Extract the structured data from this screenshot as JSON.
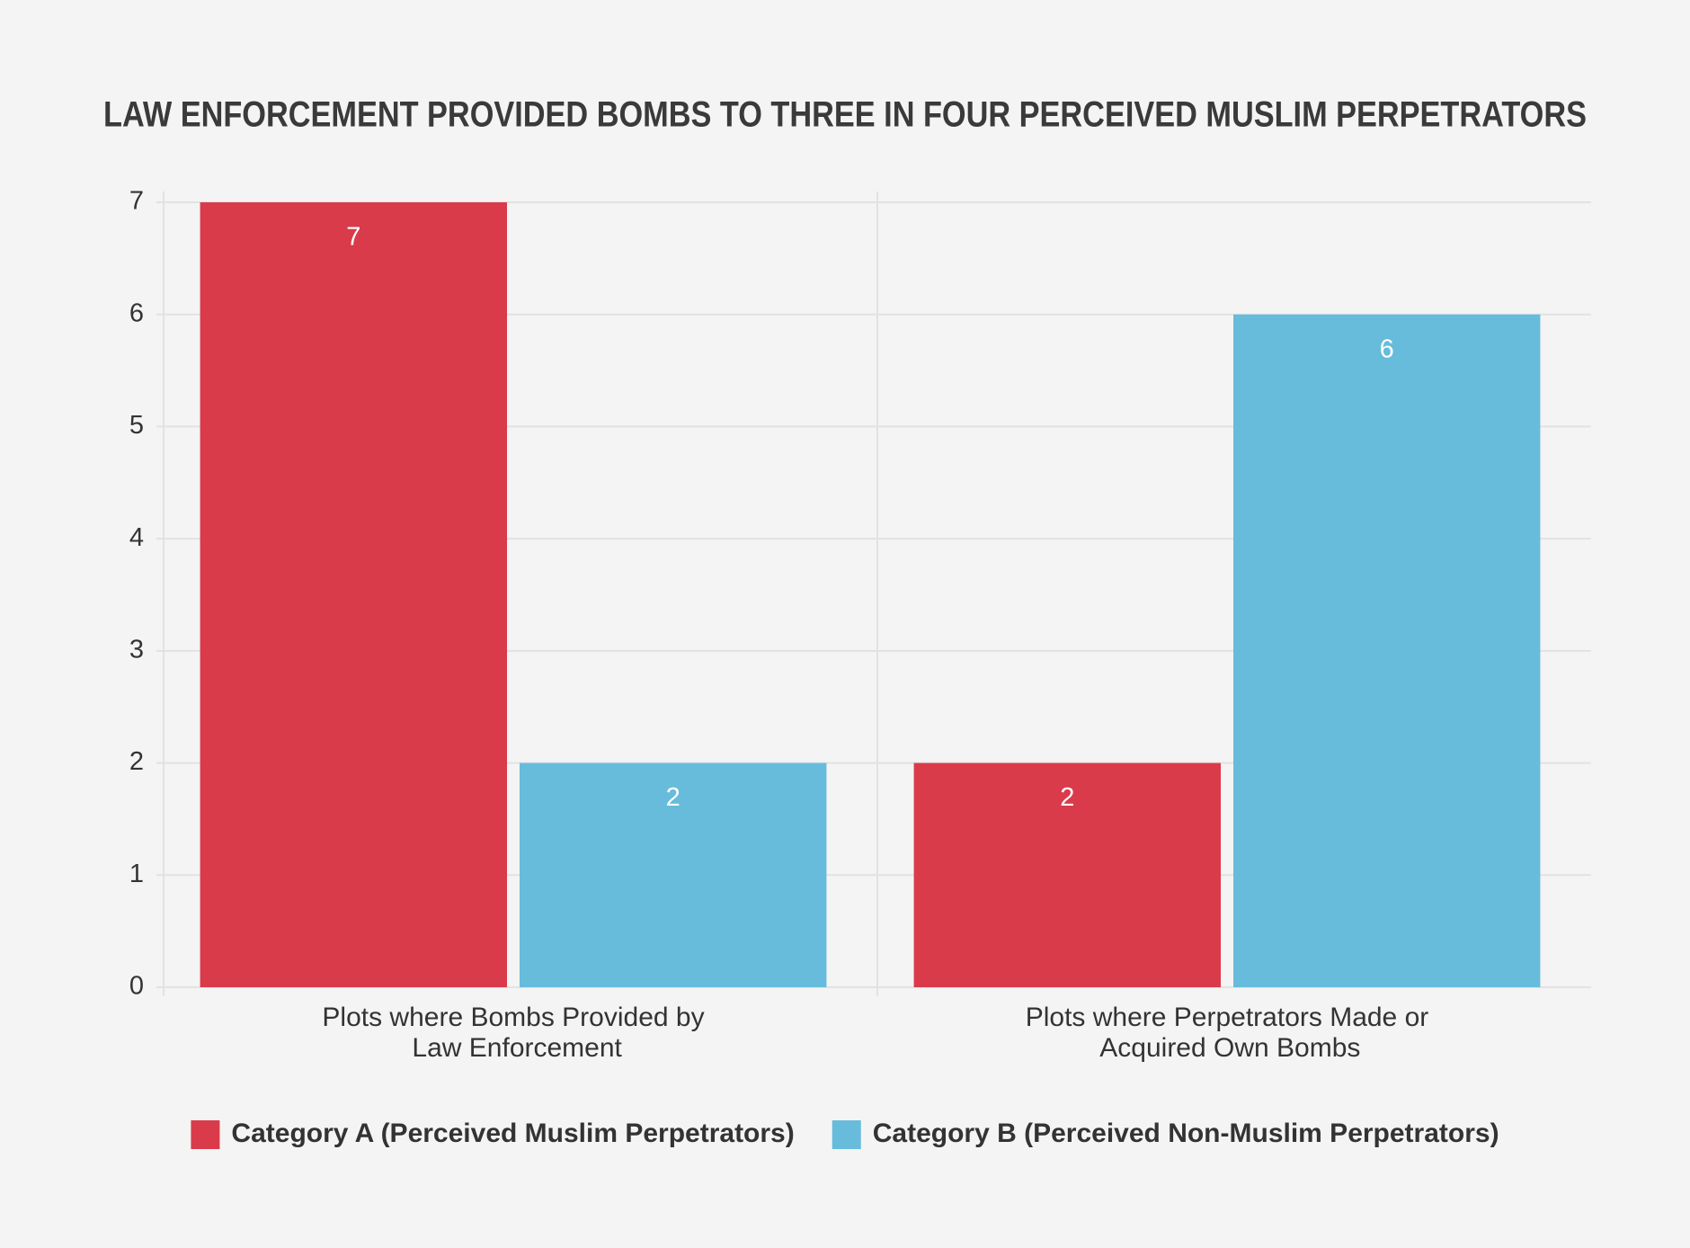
{
  "chart_data": {
    "type": "bar",
    "title": "LAW ENFORCEMENT PROVIDED BOMBS TO THREE IN FOUR PERCEIVED MUSLIM PERPETRATORS",
    "categories": [
      "Plots where Bombs Provided by Law Enforcement",
      "Plots where Perpetrators Made or Acquired Own Bombs"
    ],
    "series": [
      {
        "name": "Category A (Perceived Muslim Perpetrators)",
        "color": "#d93b4a",
        "values": [
          7,
          2
        ]
      },
      {
        "name": "Category B (Perceived Non-Muslim Perpetrators)",
        "color": "#67bcdb",
        "values": [
          2,
          6
        ]
      }
    ],
    "ylim": [
      0,
      7
    ],
    "yticks": [
      0,
      1,
      2,
      3,
      4,
      5,
      6,
      7
    ],
    "grid": true,
    "data_labels": true,
    "legend": "bottom"
  }
}
